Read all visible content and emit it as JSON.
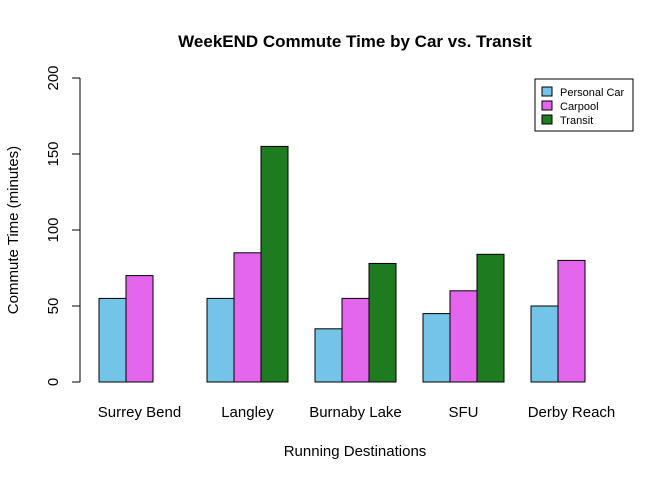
{
  "chart_data": {
    "type": "bar",
    "title": "WeekEND Commute Time by Car vs. Transit",
    "xlabel": "Running Destinations",
    "ylabel": "Commute Time (minutes)",
    "ylim": [
      0,
      200
    ],
    "yticks": [
      "0",
      "50",
      "100",
      "150",
      "200"
    ],
    "categories": [
      "Surrey Bend",
      "Langley",
      "Burnaby Lake",
      "SFU",
      "Derby Reach"
    ],
    "series": [
      {
        "name": "Personal Car",
        "color": "#74c4e8",
        "values": [
          55,
          55,
          35,
          45,
          50
        ]
      },
      {
        "name": "Carpool",
        "color": "#e466ec",
        "values": [
          70,
          85,
          55,
          60,
          80
        ]
      },
      {
        "name": "Transit",
        "color": "#1f7b1f",
        "values": [
          0,
          155,
          78,
          84,
          0
        ]
      }
    ],
    "grid": false,
    "legend_position": "top-right"
  }
}
